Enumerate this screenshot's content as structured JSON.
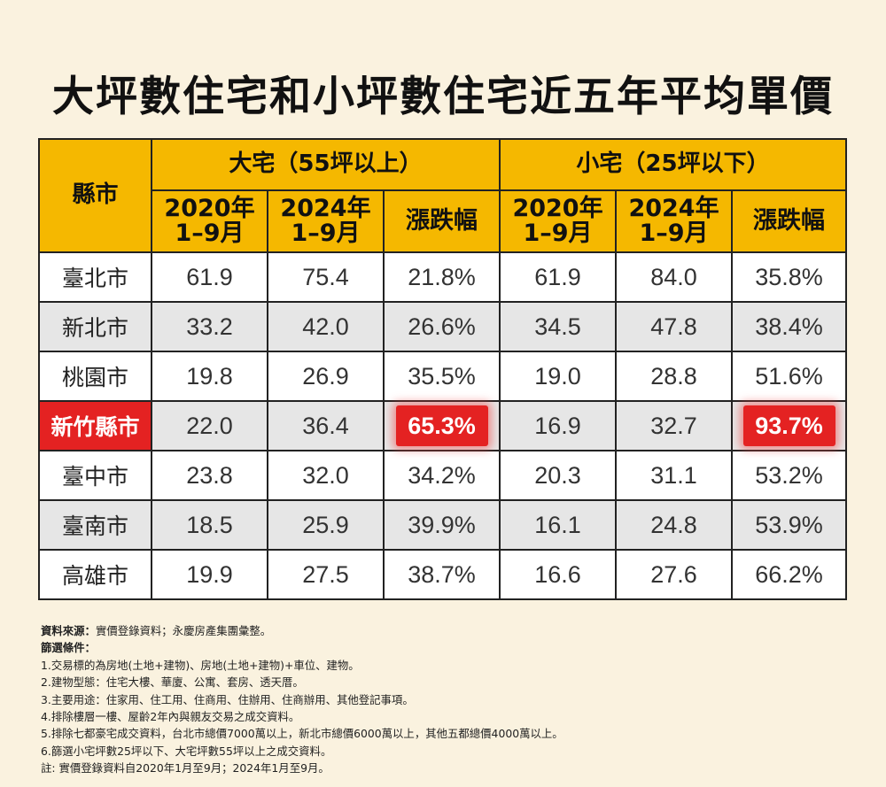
{
  "title": "大坪數住宅和小坪數住宅近五年平均單價",
  "table": {
    "county_header": "縣市",
    "groups": [
      "大宅（55坪以上）",
      "小宅（25坪以下）"
    ],
    "year_2020": [
      "2020年",
      "1–9月"
    ],
    "year_2024": [
      "2024年",
      "1–9月"
    ],
    "change_label": "漲跌幅",
    "rows": [
      {
        "city": "臺北市",
        "large_2020": "61.9",
        "large_2024": "75.4",
        "large_change": "21.8%",
        "small_2020": "61.9",
        "small_2024": "84.0",
        "small_change": "35.8%"
      },
      {
        "city": "新北市",
        "large_2020": "33.2",
        "large_2024": "42.0",
        "large_change": "26.6%",
        "small_2020": "34.5",
        "small_2024": "47.8",
        "small_change": "38.4%"
      },
      {
        "city": "桃園市",
        "large_2020": "19.8",
        "large_2024": "26.9",
        "large_change": "35.5%",
        "small_2020": "19.0",
        "small_2024": "28.8",
        "small_change": "51.6%"
      },
      {
        "city": "新竹縣市",
        "large_2020": "22.0",
        "large_2024": "36.4",
        "large_change": "65.3%",
        "small_2020": "16.9",
        "small_2024": "32.7",
        "small_change": "93.7%"
      },
      {
        "city": "臺中市",
        "large_2020": "23.8",
        "large_2024": "32.0",
        "large_change": "34.2%",
        "small_2020": "20.3",
        "small_2024": "31.1",
        "small_change": "53.2%"
      },
      {
        "city": "臺南市",
        "large_2020": "18.5",
        "large_2024": "25.9",
        "large_change": "39.9%",
        "small_2020": "16.1",
        "small_2024": "24.8",
        "small_change": "53.9%"
      },
      {
        "city": "高雄市",
        "large_2020": "19.9",
        "large_2024": "27.5",
        "large_change": "38.7%",
        "small_2020": "16.6",
        "small_2024": "27.6",
        "small_change": "66.2%"
      }
    ],
    "highlight_color": "#e42222",
    "header_color": "#f5b800"
  },
  "notes": {
    "source_label": "資料來源：",
    "source_text": "實價登錄資料；永慶房產集團彙整。",
    "filter_label": "篩選條件：",
    "items": [
      "1.交易標的為房地(土地+建物)、房地(土地+建物)+車位、建物。",
      "2.建物型態：住宅大樓、華廈、公寓、套房、透天厝。",
      "3.主要用途：住家用、住工用、住商用、住辦用、住商辦用、其他登記事項。",
      "4.排除樓層一樓、屋齡2年內與親友交易之成交資料。",
      "5.排除七都豪宅成交資料，台北市總價7000萬以上，新北市總價6000萬以上，其他五都總價4000萬以上。",
      "6.篩選小宅坪數25坪以下、大宅坪數55坪以上之成交資料。",
      "註: 實價登錄資料自2020年1月至9月；2024年1月至9月。"
    ]
  }
}
